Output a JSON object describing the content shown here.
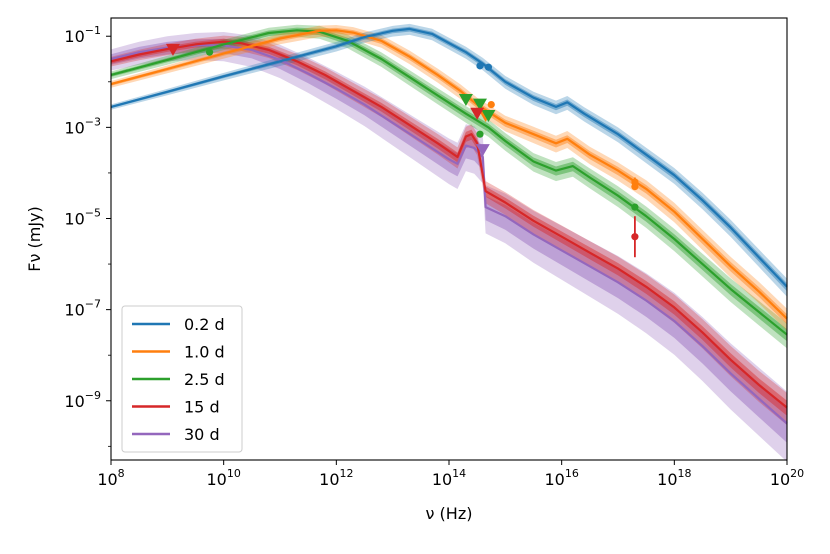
{
  "chart_data": {
    "type": "line",
    "xscale": "log",
    "yscale": "log",
    "xlabel": "ν (Hz)",
    "ylabel": "Fν (mJy)",
    "xlim_exp": [
      8,
      20
    ],
    "ylim_exp": [
      -10.3,
      -0.6
    ],
    "x_ticks": [
      {
        "base": "10",
        "exp": "8",
        "v": 8
      },
      {
        "base": "10",
        "exp": "10",
        "v": 10
      },
      {
        "base": "10",
        "exp": "12",
        "v": 12
      },
      {
        "base": "10",
        "exp": "14",
        "v": 14
      },
      {
        "base": "10",
        "exp": "16",
        "v": 16
      },
      {
        "base": "10",
        "exp": "18",
        "v": 18
      },
      {
        "base": "10",
        "exp": "20",
        "v": 20
      }
    ],
    "y_ticks": [
      {
        "base": "10",
        "exp": "−1",
        "v": -1
      },
      {
        "base": "10",
        "exp": "−3",
        "v": -3
      },
      {
        "base": "10",
        "exp": "−5",
        "v": -5
      },
      {
        "base": "10",
        "exp": "−7",
        "v": -7
      },
      {
        "base": "10",
        "exp": "−9",
        "v": -9
      }
    ],
    "series": [
      {
        "name": "0.2 d",
        "color": "#1f77b4",
        "points": [
          [
            8,
            -2.55
          ],
          [
            9,
            -2.22
          ],
          [
            10,
            -1.88
          ],
          [
            11,
            -1.55
          ],
          [
            12,
            -1.22
          ],
          [
            12.5,
            -1.02
          ],
          [
            13,
            -0.88
          ],
          [
            13.3,
            -0.84
          ],
          [
            13.7,
            -0.95
          ],
          [
            14,
            -1.15
          ],
          [
            14.3,
            -1.35
          ],
          [
            14.6,
            -1.6
          ],
          [
            15,
            -2.0
          ],
          [
            15.5,
            -2.35
          ],
          [
            15.9,
            -2.55
          ],
          [
            16.1,
            -2.45
          ],
          [
            16.4,
            -2.7
          ],
          [
            17,
            -3.15
          ],
          [
            17.5,
            -3.6
          ],
          [
            18,
            -4.05
          ],
          [
            18.5,
            -4.6
          ],
          [
            19,
            -5.2
          ],
          [
            19.5,
            -5.85
          ],
          [
            20,
            -6.5
          ]
        ],
        "band_inner": 0.08,
        "band_outer": 0.18,
        "obs": [
          {
            "x": 14.55,
            "y": -1.65,
            "err": 0
          },
          {
            "x": 14.7,
            "y": -1.68,
            "err": 0
          }
        ],
        "limits": []
      },
      {
        "name": "1.0 d",
        "color": "#ff7f0e",
        "points": [
          [
            8,
            -2.05
          ],
          [
            9,
            -1.72
          ],
          [
            10,
            -1.38
          ],
          [
            11,
            -1.05
          ],
          [
            11.7,
            -0.88
          ],
          [
            12,
            -0.87
          ],
          [
            12.3,
            -0.92
          ],
          [
            12.8,
            -1.1
          ],
          [
            13.3,
            -1.45
          ],
          [
            13.8,
            -1.85
          ],
          [
            14.2,
            -2.2
          ],
          [
            14.5,
            -2.5
          ],
          [
            15,
            -2.9
          ],
          [
            15.5,
            -3.15
          ],
          [
            15.9,
            -3.35
          ],
          [
            16.1,
            -3.25
          ],
          [
            16.5,
            -3.6
          ],
          [
            17,
            -3.95
          ],
          [
            17.5,
            -4.35
          ],
          [
            18,
            -4.85
          ],
          [
            18.5,
            -5.45
          ],
          [
            19,
            -6.05
          ],
          [
            19.5,
            -6.6
          ],
          [
            20,
            -7.2
          ]
        ],
        "band_inner": 0.1,
        "band_outer": 0.22,
        "obs": [
          {
            "x": 14.75,
            "y": -2.5,
            "err": 0
          },
          {
            "x": 17.3,
            "y": -4.2,
            "err": 0.1
          },
          {
            "x": 17.3,
            "y": -4.3,
            "err": 0
          }
        ],
        "limits": [
          {
            "x": 14.65,
            "y": -2.75
          }
        ]
      },
      {
        "name": "2.5 d",
        "color": "#2ca02c",
        "points": [
          [
            8,
            -1.85
          ],
          [
            9,
            -1.52
          ],
          [
            10,
            -1.18
          ],
          [
            10.8,
            -0.93
          ],
          [
            11.3,
            -0.87
          ],
          [
            11.7,
            -0.9
          ],
          [
            12.2,
            -1.1
          ],
          [
            12.8,
            -1.5
          ],
          [
            13.3,
            -1.9
          ],
          [
            13.8,
            -2.3
          ],
          [
            14.3,
            -2.7
          ],
          [
            14.7,
            -3.0
          ],
          [
            15,
            -3.3
          ],
          [
            15.5,
            -3.75
          ],
          [
            15.9,
            -3.95
          ],
          [
            16.2,
            -3.85
          ],
          [
            16.5,
            -4.1
          ],
          [
            17,
            -4.5
          ],
          [
            17.5,
            -4.95
          ],
          [
            18,
            -5.45
          ],
          [
            18.5,
            -6.0
          ],
          [
            19,
            -6.55
          ],
          [
            19.5,
            -7.05
          ],
          [
            20,
            -7.55
          ]
        ],
        "band_inner": 0.12,
        "band_outer": 0.25,
        "obs": [
          {
            "x": 9.75,
            "y": -1.35,
            "err": 0
          },
          {
            "x": 14.55,
            "y": -3.15,
            "err": 0
          },
          {
            "x": 17.3,
            "y": -4.75,
            "err": 0
          }
        ],
        "limits": [
          {
            "x": 14.3,
            "y": -2.4
          },
          {
            "x": 14.55,
            "y": -2.5
          },
          {
            "x": 14.7,
            "y": -2.75
          }
        ]
      },
      {
        "name": "15 d",
        "color": "#d62728",
        "points": [
          [
            8,
            -1.55
          ],
          [
            8.5,
            -1.4
          ],
          [
            9,
            -1.28
          ],
          [
            9.5,
            -1.18
          ],
          [
            10,
            -1.12
          ],
          [
            10.3,
            -1.15
          ],
          [
            10.8,
            -1.3
          ],
          [
            11.3,
            -1.55
          ],
          [
            11.8,
            -1.85
          ],
          [
            12.3,
            -2.2
          ],
          [
            12.8,
            -2.55
          ],
          [
            13.3,
            -2.95
          ],
          [
            13.8,
            -3.35
          ],
          [
            14.15,
            -3.65
          ],
          [
            14.3,
            -3.2
          ],
          [
            14.4,
            -3.15
          ],
          [
            14.5,
            -3.35
          ],
          [
            14.65,
            -4.4
          ],
          [
            15,
            -4.65
          ],
          [
            15.5,
            -5.05
          ],
          [
            16,
            -5.4
          ],
          [
            16.5,
            -5.75
          ],
          [
            17,
            -6.1
          ],
          [
            17.5,
            -6.5
          ],
          [
            18,
            -6.95
          ],
          [
            18.5,
            -7.5
          ],
          [
            19,
            -8.1
          ],
          [
            19.5,
            -8.65
          ],
          [
            20,
            -9.15
          ]
        ],
        "band_inner": 0.15,
        "band_outer": 0.32,
        "obs": [
          {
            "x": 17.3,
            "y": -5.4,
            "err": 0.45
          }
        ],
        "limits": [
          {
            "x": 9.1,
            "y": -1.3
          },
          {
            "x": 14.5,
            "y": -2.7
          }
        ]
      },
      {
        "name": "30 d",
        "color": "#9467bd",
        "points": [
          [
            8,
            -1.5
          ],
          [
            8.5,
            -1.35
          ],
          [
            9,
            -1.25
          ],
          [
            9.5,
            -1.2
          ],
          [
            10,
            -1.2
          ],
          [
            10.5,
            -1.3
          ],
          [
            11,
            -1.52
          ],
          [
            11.5,
            -1.82
          ],
          [
            12,
            -2.15
          ],
          [
            12.5,
            -2.5
          ],
          [
            13,
            -2.9
          ],
          [
            13.5,
            -3.3
          ],
          [
            14,
            -3.7
          ],
          [
            14.15,
            -3.8
          ],
          [
            14.3,
            -3.4
          ],
          [
            14.45,
            -3.45
          ],
          [
            14.6,
            -3.65
          ],
          [
            14.65,
            -4.75
          ],
          [
            15,
            -4.95
          ],
          [
            15.5,
            -5.35
          ],
          [
            16,
            -5.7
          ],
          [
            16.5,
            -6.05
          ],
          [
            17,
            -6.4
          ],
          [
            17.5,
            -6.8
          ],
          [
            18,
            -7.25
          ],
          [
            18.5,
            -7.8
          ],
          [
            19,
            -8.4
          ],
          [
            19.5,
            -8.95
          ],
          [
            20,
            -9.5
          ]
        ],
        "band_inner": 0.35,
        "band_outer": 0.7,
        "obs": [],
        "limits": [
          {
            "x": 14.6,
            "y": -3.5
          }
        ]
      }
    ]
  }
}
